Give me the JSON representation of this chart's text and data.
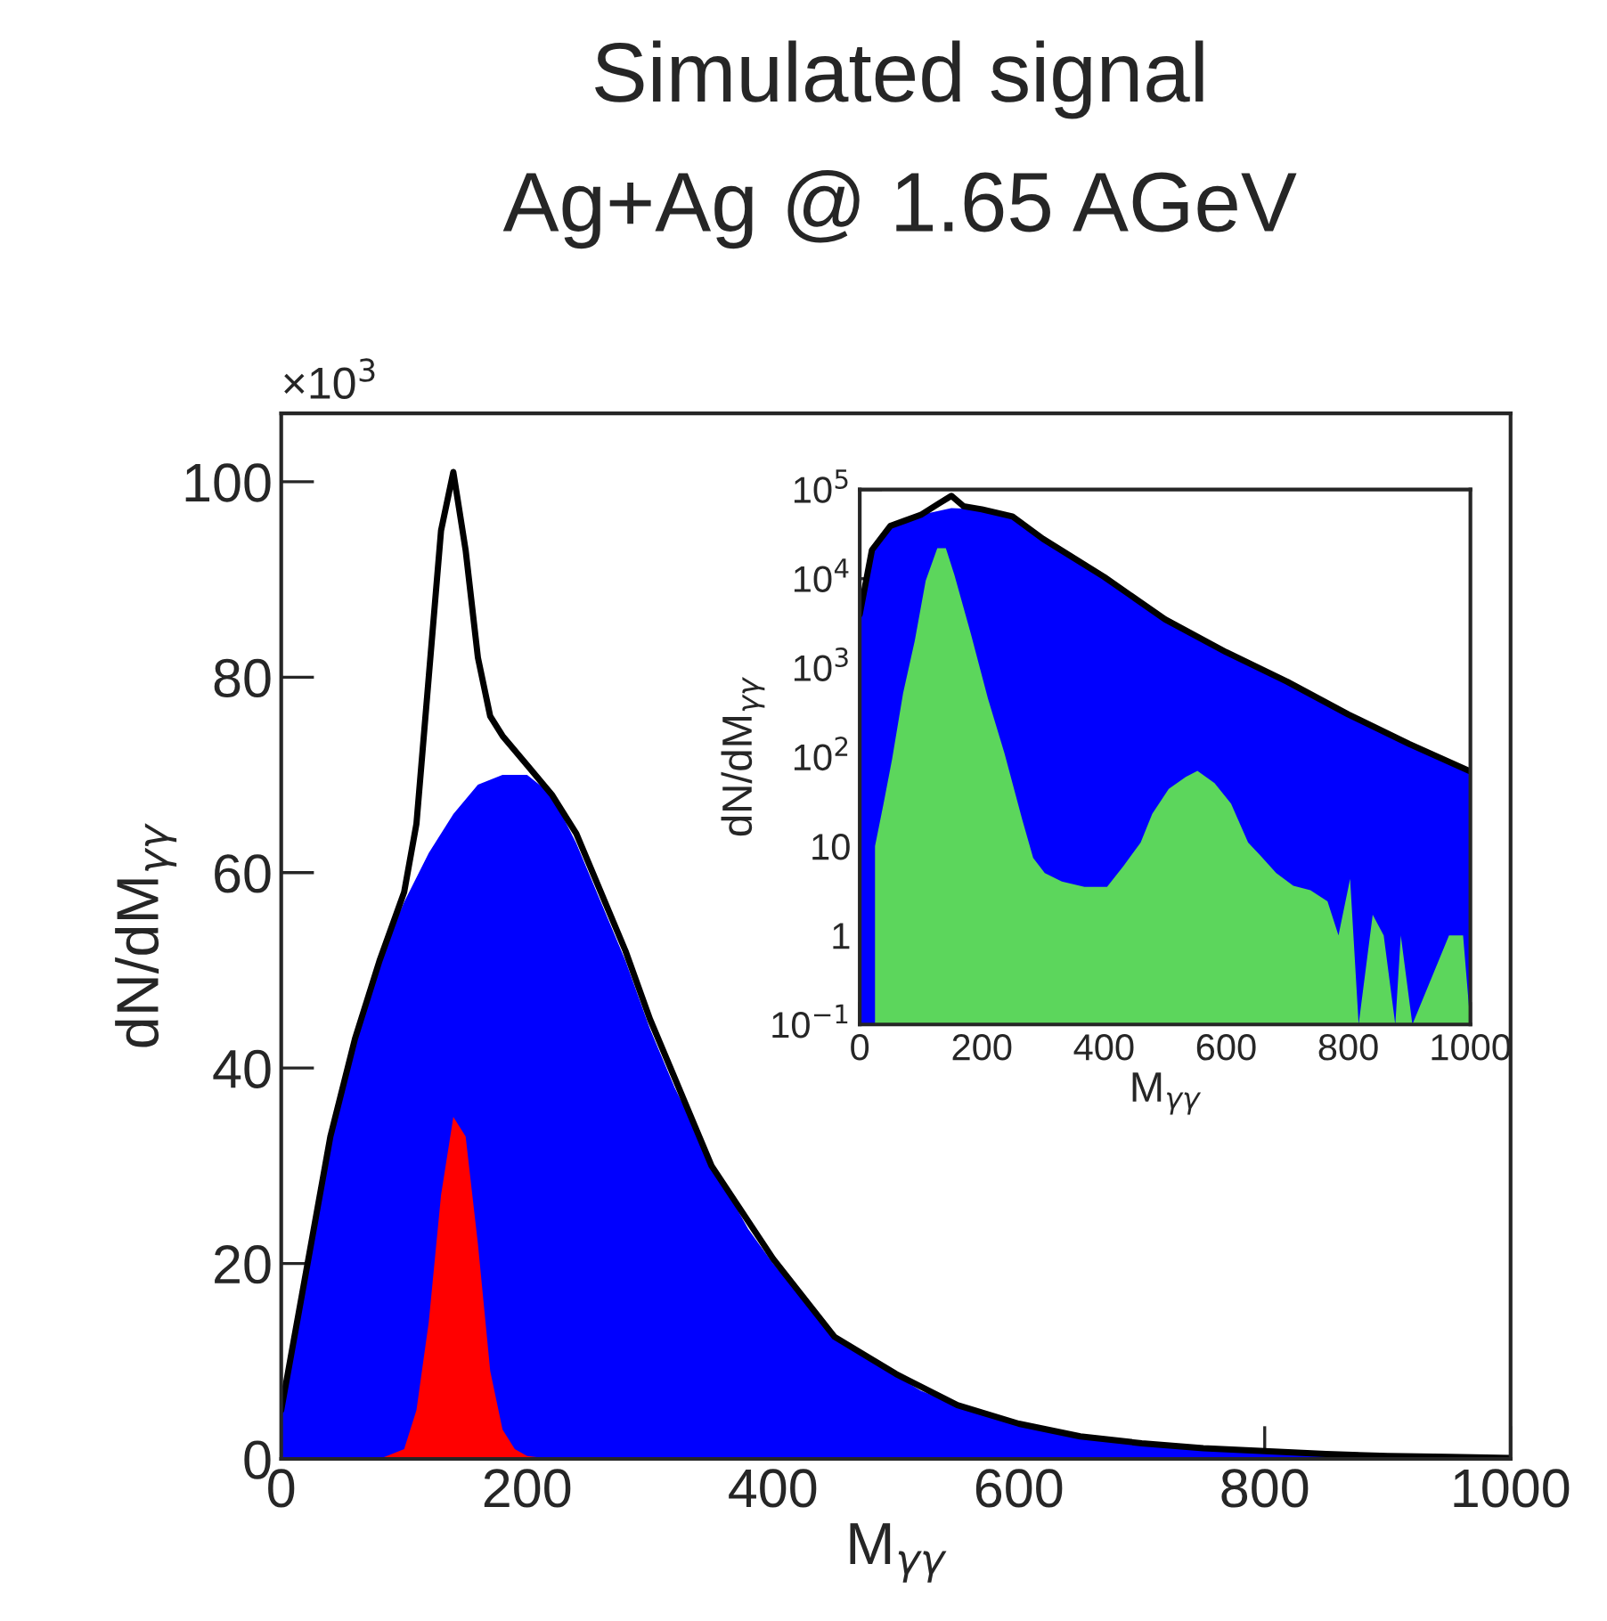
{
  "chart_data": [
    {
      "type": "area",
      "title": "Simulated signal",
      "subtitle": "Ag+Ag @ 1.65 AGeV",
      "xlabel": "M$_{γγ}$",
      "ylabel": "dN/dM$_{γγ}$",
      "annotations": [
        "×10$^{3}$"
      ],
      "xlim": [
        0,
        1000
      ],
      "xticks": [
        0,
        200,
        400,
        600,
        800,
        1000
      ],
      "ylim": [
        0,
        107
      ],
      "yticks": [
        0,
        20,
        40,
        60,
        80,
        100
      ],
      "grid": false,
      "legend": false,
      "series": [
        {
          "color": "#0000ff",
          "x": [
            0,
            20,
            40,
            60,
            80,
            100,
            120,
            140,
            160,
            180,
            200,
            220,
            240,
            260,
            280,
            300,
            320,
            340,
            360,
            380,
            400,
            420,
            440,
            460,
            480,
            500,
            520,
            540,
            560,
            580,
            600,
            620,
            640,
            660,
            680,
            700,
            720,
            740,
            760,
            780,
            800,
            820,
            840,
            860,
            880,
            900,
            920,
            940,
            960,
            980,
            1000
          ],
          "values": [
            5,
            19,
            33,
            43,
            51,
            57,
            62,
            66,
            69,
            70,
            70,
            68,
            63,
            57,
            51,
            44,
            38,
            33,
            28,
            23.5,
            20,
            17,
            14,
            11.5,
            10,
            8.5,
            7,
            6,
            5,
            4.2,
            3.5,
            3,
            2.5,
            2.1,
            1.8,
            1.5,
            1.3,
            1.1,
            1,
            0.8,
            0.7,
            0.6,
            0.5,
            0.4,
            0.3,
            0.2,
            0.2,
            0.1,
            0.1,
            0.1,
            0.1
          ]
        },
        {
          "color": "#ff0000",
          "x": [
            0,
            80,
            100,
            110,
            120,
            130,
            140,
            150,
            160,
            170,
            180,
            190,
            200,
            220,
            1000
          ],
          "values": [
            0,
            0,
            1,
            5,
            14,
            27,
            35,
            33,
            22,
            9,
            3,
            1,
            0.3,
            0,
            0
          ]
        },
        {
          "type": "line",
          "color": "#000000",
          "x": [
            0,
            20,
            40,
            60,
            80,
            100,
            110,
            120,
            130,
            140,
            150,
            160,
            170,
            180,
            200,
            220,
            240,
            260,
            280,
            300,
            350,
            400,
            450,
            500,
            550,
            600,
            650,
            700,
            750,
            800,
            850,
            900,
            950,
            1000
          ],
          "values": [
            5,
            19,
            33,
            43,
            51,
            58,
            65,
            80,
            95,
            101,
            93,
            82,
            76,
            74,
            71,
            68,
            64,
            58,
            52,
            45,
            30,
            20.5,
            12.5,
            8.7,
            5.5,
            3.6,
            2.3,
            1.6,
            1.1,
            0.8,
            0.5,
            0.3,
            0.2,
            0.1
          ]
        }
      ]
    },
    {
      "type": "area",
      "xlabel": "M$_{γγ}$",
      "ylabel": "dN/dM$_{γγ}$",
      "log": "y",
      "xlim": [
        0,
        1000
      ],
      "xticks": [
        0,
        200,
        400,
        600,
        800,
        1000
      ],
      "ylim": [
        0.1,
        100000
      ],
      "yticks": [
        {
          "value": 0.1,
          "label": "10$^{−1}$"
        },
        1,
        10,
        {
          "value": 100,
          "label": "10$^{2}$"
        },
        {
          "value": 1000,
          "label": "10$^{3}$"
        },
        {
          "value": 10000,
          "label": "10$^{4}$"
        },
        {
          "value": 100000,
          "label": "10$^{5}$"
        }
      ],
      "grid": false,
      "legend": false,
      "series": [
        {
          "color": "#0000ff",
          "x": [
            0,
            20,
            50,
            100,
            150,
            200,
            250,
            300,
            400,
            500,
            600,
            700,
            800,
            900,
            1000
          ],
          "values": [
            4000,
            21000,
            39000,
            52000,
            62000,
            60000,
            50000,
            28000,
            10500,
            3500,
            1500,
            700,
            300,
            140,
            69
          ]
        },
        {
          "color": "#5cd65c",
          "x": [
            25,
            39,
            53,
            71,
            90,
            108,
            127,
            141,
            155,
            182,
            210,
            237,
            266,
            284,
            303,
            331,
            368,
            405,
            432,
            460,
            479,
            506,
            534,
            553,
            581,
            608,
            636,
            655,
            682,
            710,
            738,
            766,
            784,
            803,
            817,
            840,
            858,
            877,
            886,
            905,
            965,
            988,
            1000
          ],
          "values": [
            10,
            30,
            95,
            520,
            2000,
            9500,
            22000,
            22000,
            11000,
            2400,
            450,
            110,
            20,
            7.4,
            5,
            4,
            3.5,
            3.5,
            6,
            11,
            23,
            44,
            60,
            70,
            51,
            30,
            11,
            8,
            5,
            3.6,
            3.2,
            2.4,
            1,
            4.3,
            0.1,
            1.7,
            1,
            0.1,
            1,
            0.1,
            1,
            1,
            0.1
          ]
        },
        {
          "type": "line",
          "color": "#000000",
          "x": [
            0,
            20,
            50,
            100,
            130,
            150,
            170,
            200,
            250,
            300,
            400,
            500,
            600,
            700,
            800,
            900,
            1000
          ],
          "values": [
            4000,
            21000,
            39000,
            52000,
            70000,
            85000,
            65000,
            60000,
            50000,
            28000,
            10500,
            3500,
            1500,
            700,
            300,
            140,
            69
          ]
        }
      ]
    }
  ]
}
